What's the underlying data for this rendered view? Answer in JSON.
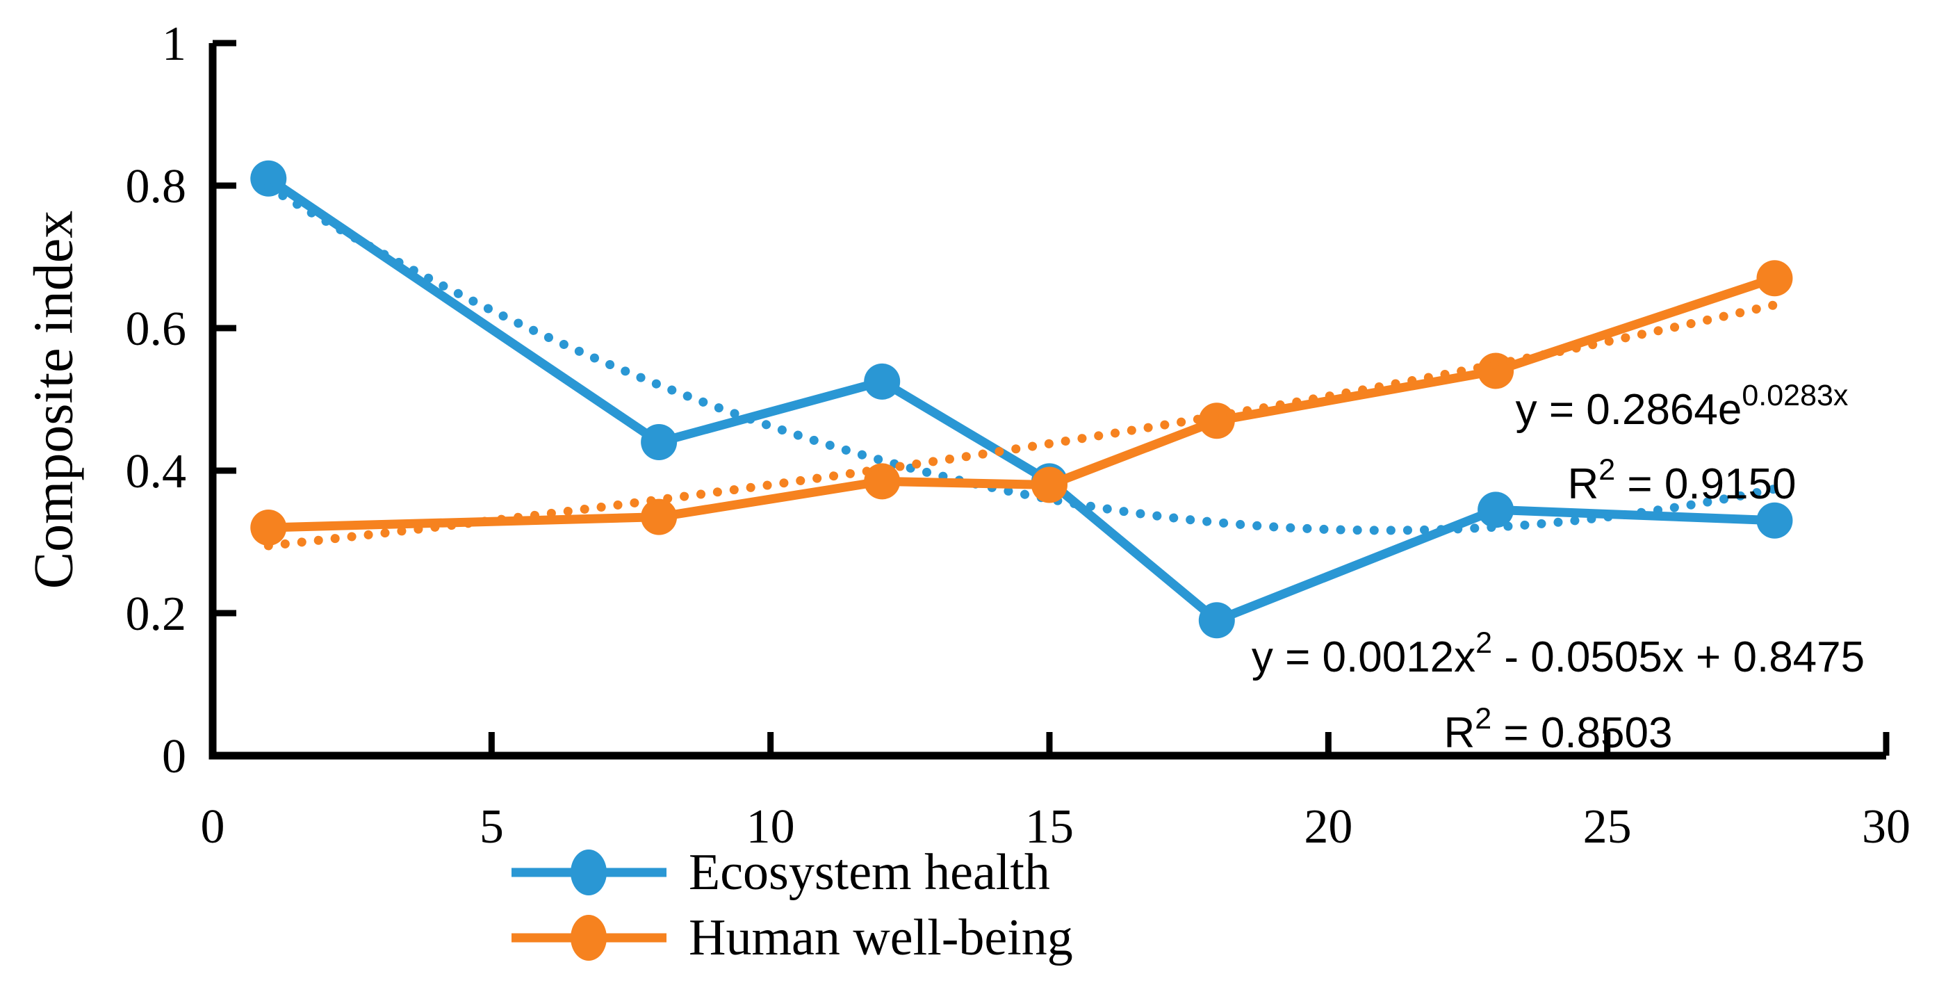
{
  "chart_data": {
    "type": "line",
    "title": "",
    "xlabel": "",
    "ylabel": "Composite index",
    "xlim": [
      0,
      30
    ],
    "ylim": [
      0,
      1
    ],
    "grid": false,
    "legend_position": "bottom-left",
    "x_tick_labels": [
      "0",
      "5",
      "10",
      "15",
      "20",
      "25",
      "30"
    ],
    "x_tick_values": [
      0,
      5,
      10,
      15,
      20,
      25,
      30
    ],
    "y_tick_labels": [
      "0",
      "0.2",
      "0.4",
      "0.6",
      "0.8",
      "1"
    ],
    "y_tick_values": [
      0,
      0.2,
      0.4,
      0.6,
      0.8,
      1
    ],
    "axis_color": "#000000",
    "series": [
      {
        "name": "Ecosystem health",
        "color": "#2A97D4",
        "marker": "circle",
        "x": [
          1,
          8,
          12,
          15,
          18,
          23,
          28
        ],
        "y": [
          0.81,
          0.44,
          0.525,
          0.385,
          0.19,
          0.345,
          0.33
        ],
        "trendline": {
          "type": "polynomial",
          "style": "dotted",
          "coefficients": {
            "a2": 0.0012,
            "a1": -0.0505,
            "a0": 0.8475
          },
          "r_squared": 0.8503,
          "x_range": [
            1,
            28
          ],
          "equation_label": {
            "pre": "y = 0.0012x",
            "sup": "2",
            "post": " - 0.0505x + 0.8475"
          },
          "r2_label": {
            "pre": "R",
            "sup": "2",
            "post": " = 0.8503"
          }
        }
      },
      {
        "name": "Human well-being",
        "color": "#F6821F",
        "marker": "circle",
        "x": [
          1,
          8,
          12,
          15,
          18,
          23,
          28
        ],
        "y": [
          0.32,
          0.335,
          0.385,
          0.38,
          0.47,
          0.54,
          0.67
        ],
        "trendline": {
          "type": "exponential",
          "style": "dotted",
          "coefficients": {
            "a": 0.2864,
            "b": 0.0283
          },
          "r_squared": 0.915,
          "x_range": [
            1,
            28
          ],
          "equation_label": {
            "pre": "y = 0.2864e",
            "sup": "0.0283x",
            "post": ""
          },
          "r2_label": {
            "pre": "R",
            "sup": "2",
            "post": " = 0.9150"
          }
        }
      }
    ]
  }
}
